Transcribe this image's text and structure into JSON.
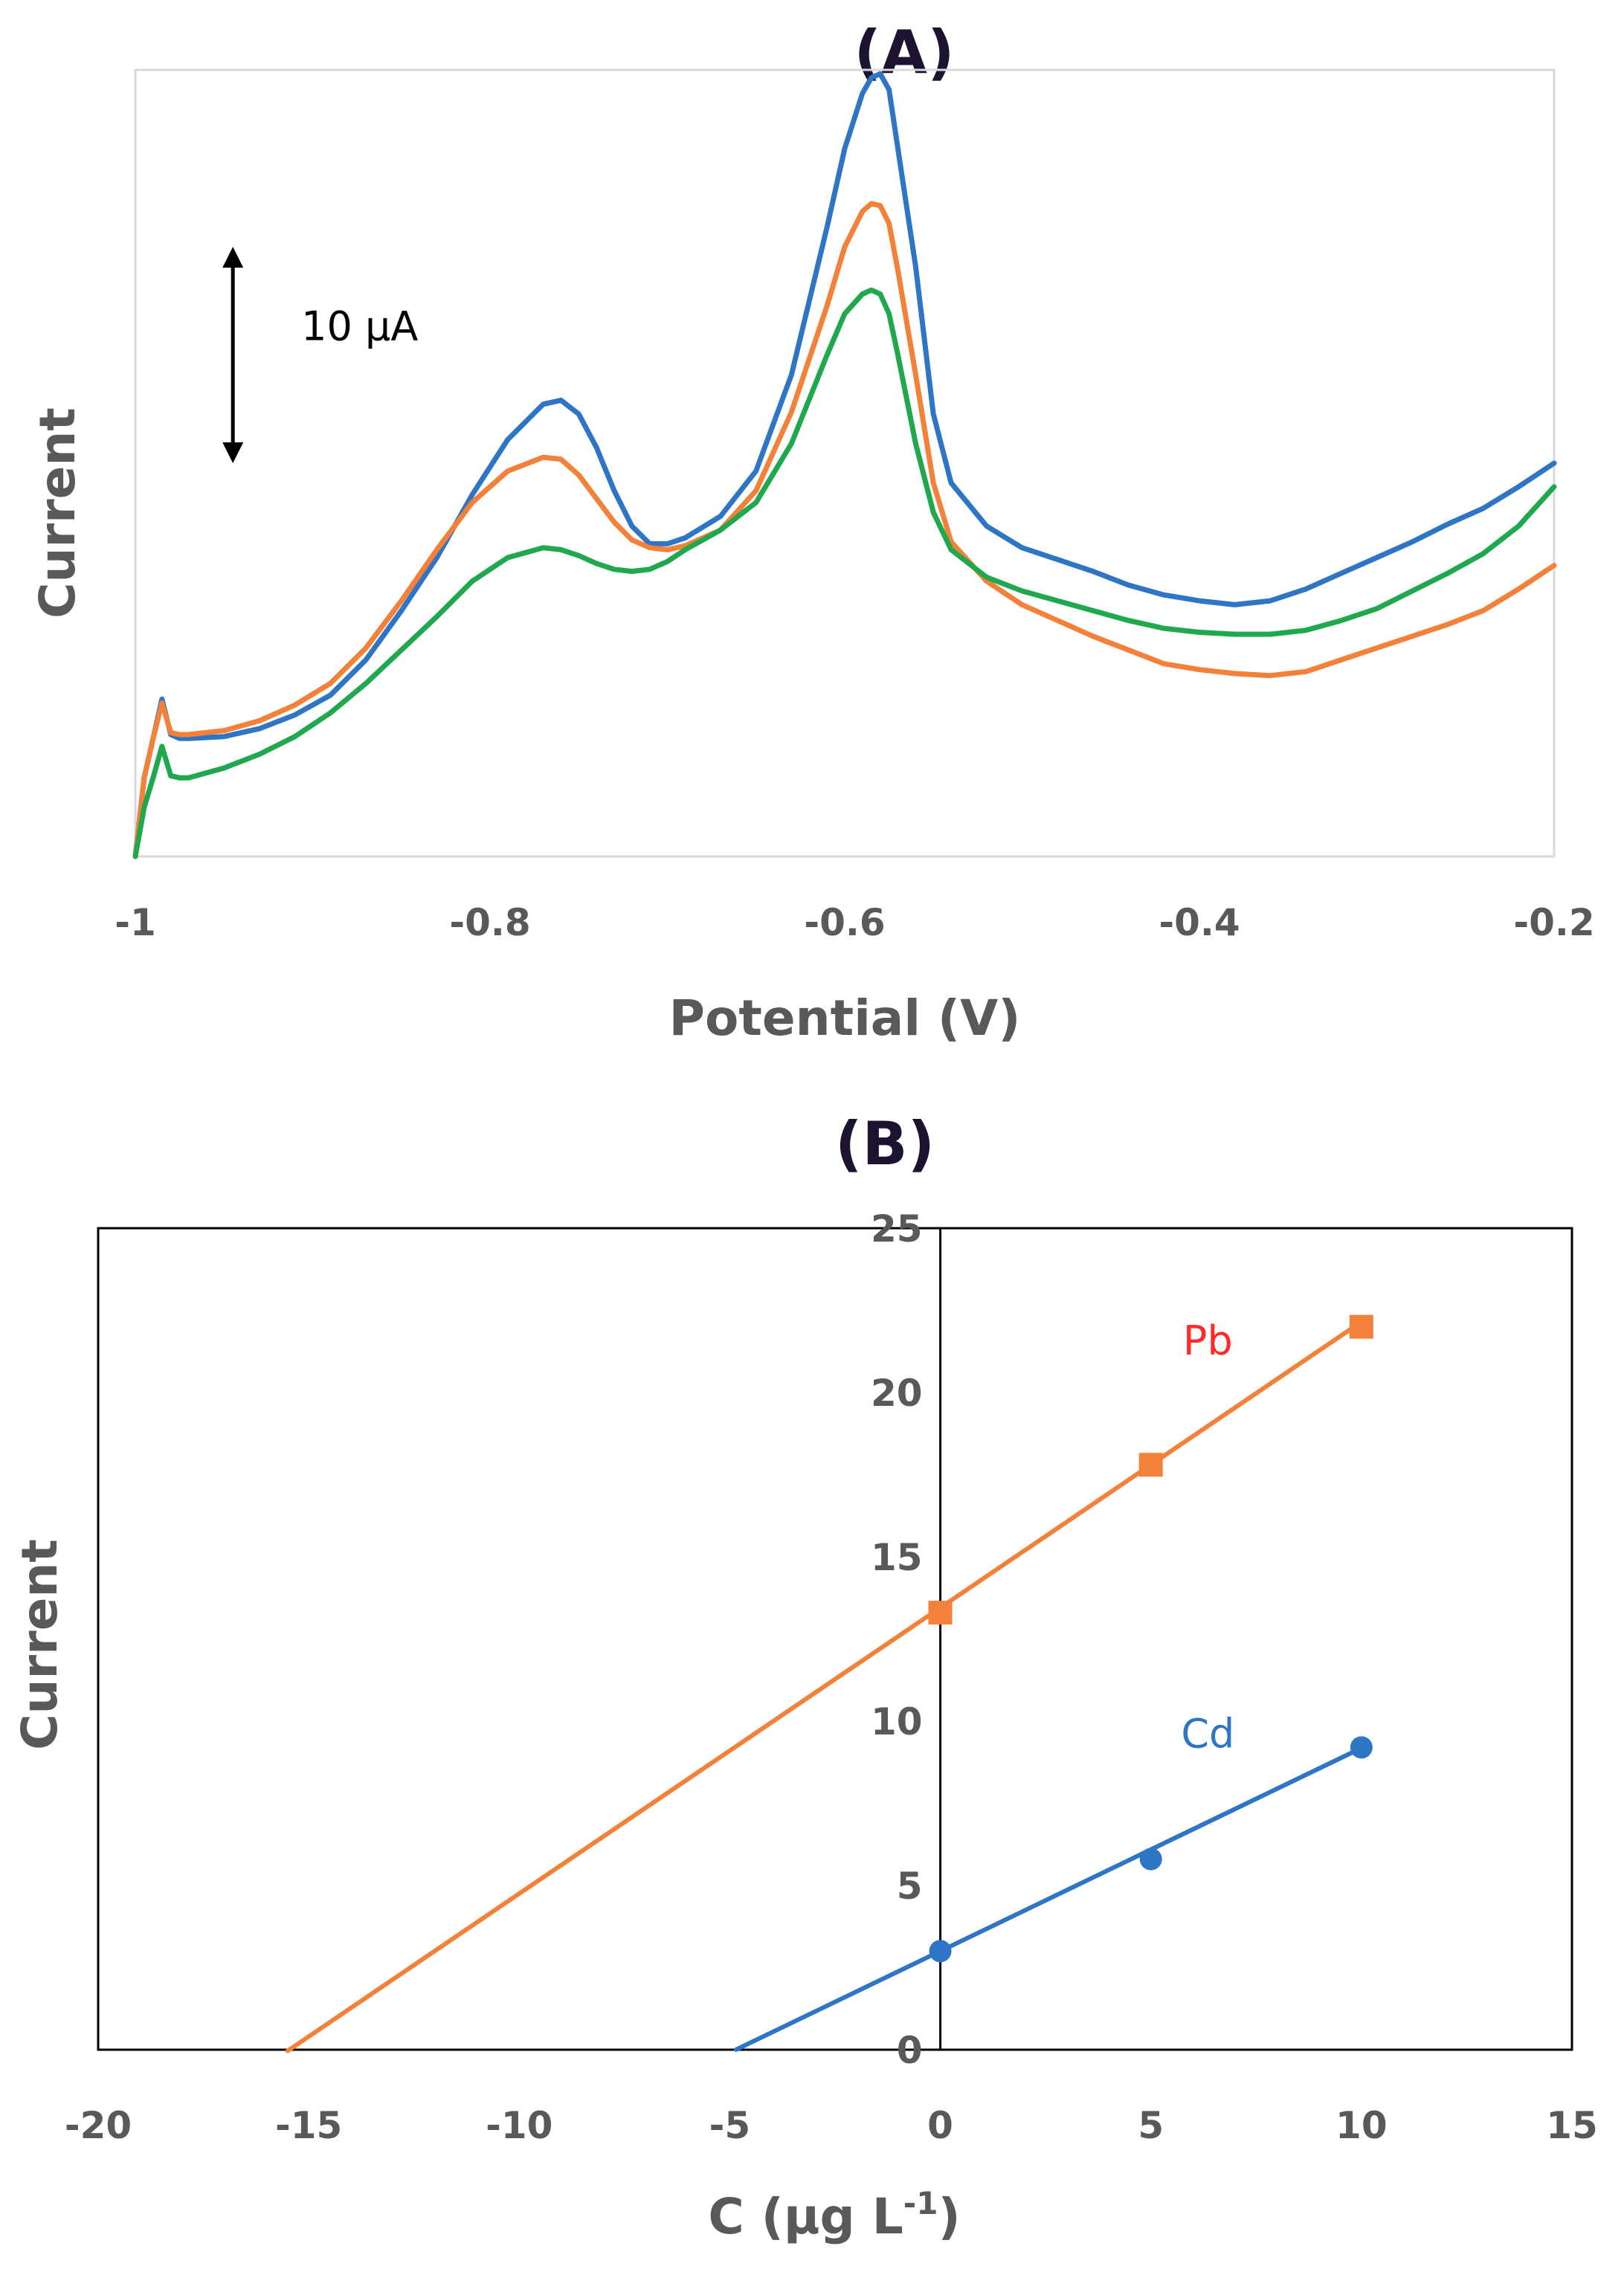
{
  "chart_data": [
    {
      "panel": "(A)",
      "type": "line",
      "title": "(A)",
      "xlabel": "Potential (V)",
      "ylabel": "Current",
      "xlim": [
        -1,
        -0.2
      ],
      "xticks": [
        -1,
        -0.8,
        -0.6,
        -0.4,
        -0.2
      ],
      "xtick_labels": [
        "-1",
        "-0.8",
        "-0.6",
        "-0.4",
        "-0.2"
      ],
      "ylim": [
        0,
        40
      ],
      "grid": false,
      "scale_bar": {
        "label": "10 μA",
        "value": 10,
        "x": -0.945,
        "y_from": 20,
        "y_to": 31
      },
      "series": [
        {
          "color": "#2e75c6",
          "x": [
            -1,
            -0.995,
            -0.99,
            -0.985,
            -0.98,
            -0.975,
            -0.97,
            -0.95,
            -0.93,
            -0.91,
            -0.89,
            -0.87,
            -0.85,
            -0.83,
            -0.81,
            -0.79,
            -0.77,
            -0.76,
            -0.75,
            -0.74,
            -0.73,
            -0.72,
            -0.71,
            -0.7,
            -0.69,
            -0.67,
            -0.65,
            -0.63,
            -0.61,
            -0.6,
            -0.59,
            -0.585,
            -0.58,
            -0.575,
            -0.57,
            -0.56,
            -0.55,
            -0.54,
            -0.52,
            -0.5,
            -0.48,
            -0.46,
            -0.44,
            -0.42,
            -0.4,
            -0.38,
            -0.36,
            -0.34,
            -0.32,
            -0.3,
            -0.28,
            -0.26,
            -0.24,
            -0.22,
            -0.2
          ],
          "y": [
            0,
            4,
            6,
            8,
            6.2,
            6,
            6,
            6.1,
            6.5,
            7.2,
            8.2,
            10.0,
            12.5,
            15.2,
            18.4,
            21.2,
            23.0,
            23.2,
            22.5,
            20.8,
            18.6,
            16.8,
            15.9,
            15.9,
            16.2,
            17.3,
            19.6,
            24.5,
            32.0,
            36.0,
            38.8,
            39.6,
            39.8,
            39.0,
            36.0,
            30.0,
            22.5,
            19.0,
            16.8,
            15.7,
            15.1,
            14.5,
            13.8,
            13.3,
            13.0,
            12.8,
            13.0,
            13.6,
            14.4,
            15.2,
            16.0,
            16.9,
            17.7,
            18.8,
            20.0
          ]
        },
        {
          "color": "#f4813a",
          "x": [
            -1,
            -0.995,
            -0.99,
            -0.985,
            -0.98,
            -0.975,
            -0.97,
            -0.95,
            -0.93,
            -0.91,
            -0.89,
            -0.87,
            -0.85,
            -0.83,
            -0.81,
            -0.79,
            -0.77,
            -0.76,
            -0.75,
            -0.74,
            -0.73,
            -0.72,
            -0.71,
            -0.7,
            -0.69,
            -0.67,
            -0.65,
            -0.63,
            -0.61,
            -0.6,
            -0.59,
            -0.585,
            -0.58,
            -0.575,
            -0.57,
            -0.56,
            -0.55,
            -0.54,
            -0.52,
            -0.5,
            -0.48,
            -0.46,
            -0.44,
            -0.42,
            -0.4,
            -0.38,
            -0.36,
            -0.34,
            -0.32,
            -0.3,
            -0.28,
            -0.26,
            -0.24,
            -0.22,
            -0.2
          ],
          "y": [
            0,
            4,
            6,
            7.8,
            6.3,
            6.2,
            6.2,
            6.4,
            6.9,
            7.7,
            8.8,
            10.6,
            13.0,
            15.6,
            18.0,
            19.6,
            20.3,
            20.2,
            19.4,
            18.2,
            17.0,
            16.1,
            15.7,
            15.6,
            15.8,
            16.6,
            18.6,
            22.6,
            28.0,
            31.0,
            32.8,
            33.2,
            33.1,
            32.2,
            29.8,
            24.5,
            19.0,
            16.0,
            14.0,
            12.8,
            12.0,
            11.2,
            10.5,
            9.8,
            9.5,
            9.3,
            9.2,
            9.4,
            10.0,
            10.6,
            11.2,
            11.8,
            12.5,
            13.6,
            14.8
          ]
        },
        {
          "color": "#20a84f",
          "x": [
            -1,
            -0.995,
            -0.99,
            -0.985,
            -0.98,
            -0.975,
            -0.97,
            -0.95,
            -0.93,
            -0.91,
            -0.89,
            -0.87,
            -0.85,
            -0.83,
            -0.81,
            -0.79,
            -0.77,
            -0.76,
            -0.75,
            -0.74,
            -0.73,
            -0.72,
            -0.71,
            -0.7,
            -0.69,
            -0.67,
            -0.65,
            -0.63,
            -0.61,
            -0.6,
            -0.59,
            -0.585,
            -0.58,
            -0.575,
            -0.57,
            -0.56,
            -0.55,
            -0.54,
            -0.52,
            -0.5,
            -0.48,
            -0.46,
            -0.44,
            -0.42,
            -0.4,
            -0.38,
            -0.36,
            -0.34,
            -0.32,
            -0.3,
            -0.28,
            -0.26,
            -0.24,
            -0.22,
            -0.2
          ],
          "y": [
            0,
            2.5,
            4,
            5.6,
            4.1,
            4.0,
            4.0,
            4.5,
            5.2,
            6.1,
            7.3,
            8.8,
            10.5,
            12.2,
            14.0,
            15.2,
            15.7,
            15.6,
            15.3,
            14.9,
            14.6,
            14.5,
            14.6,
            15.0,
            15.6,
            16.6,
            18.0,
            21.0,
            25.5,
            27.6,
            28.6,
            28.8,
            28.6,
            27.6,
            25.5,
            21.0,
            17.5,
            15.6,
            14.2,
            13.5,
            13.0,
            12.5,
            12.0,
            11.6,
            11.4,
            11.3,
            11.3,
            11.5,
            12.0,
            12.6,
            13.5,
            14.4,
            15.4,
            16.8,
            18.8
          ]
        }
      ]
    },
    {
      "panel": "(B)",
      "type": "scatter",
      "title": "(B)",
      "xlabel_prefix": "C (μg L",
      "xlabel_sup": "-1",
      "xlabel_suffix": ")",
      "ylabel": "Current",
      "xlim": [
        -20,
        15
      ],
      "ylim": [
        0,
        25
      ],
      "xticks": [
        -20,
        -15,
        -10,
        -5,
        0,
        5,
        10,
        15
      ],
      "yticks": [
        0,
        5,
        10,
        15,
        20,
        25
      ],
      "grid": false,
      "series": [
        {
          "name": "Pb",
          "marker": "square",
          "color": "#f4813a",
          "label_color": "#ff2b2b",
          "x": [
            0,
            5,
            10
          ],
          "y": [
            13.3,
            17.8,
            22.0
          ],
          "fit": {
            "slope": 0.87,
            "intercept": 13.45,
            "x_from": -15.5,
            "x_to": 10
          }
        },
        {
          "name": "Cd",
          "marker": "circle",
          "color": "#2e75c6",
          "label_color": "#2e75c6",
          "x": [
            0,
            5,
            10
          ],
          "y": [
            3.0,
            5.8,
            9.2
          ],
          "fit": {
            "slope": 0.618,
            "intercept": 3.0,
            "x_from": -4.85,
            "x_to": 10
          }
        }
      ]
    }
  ]
}
